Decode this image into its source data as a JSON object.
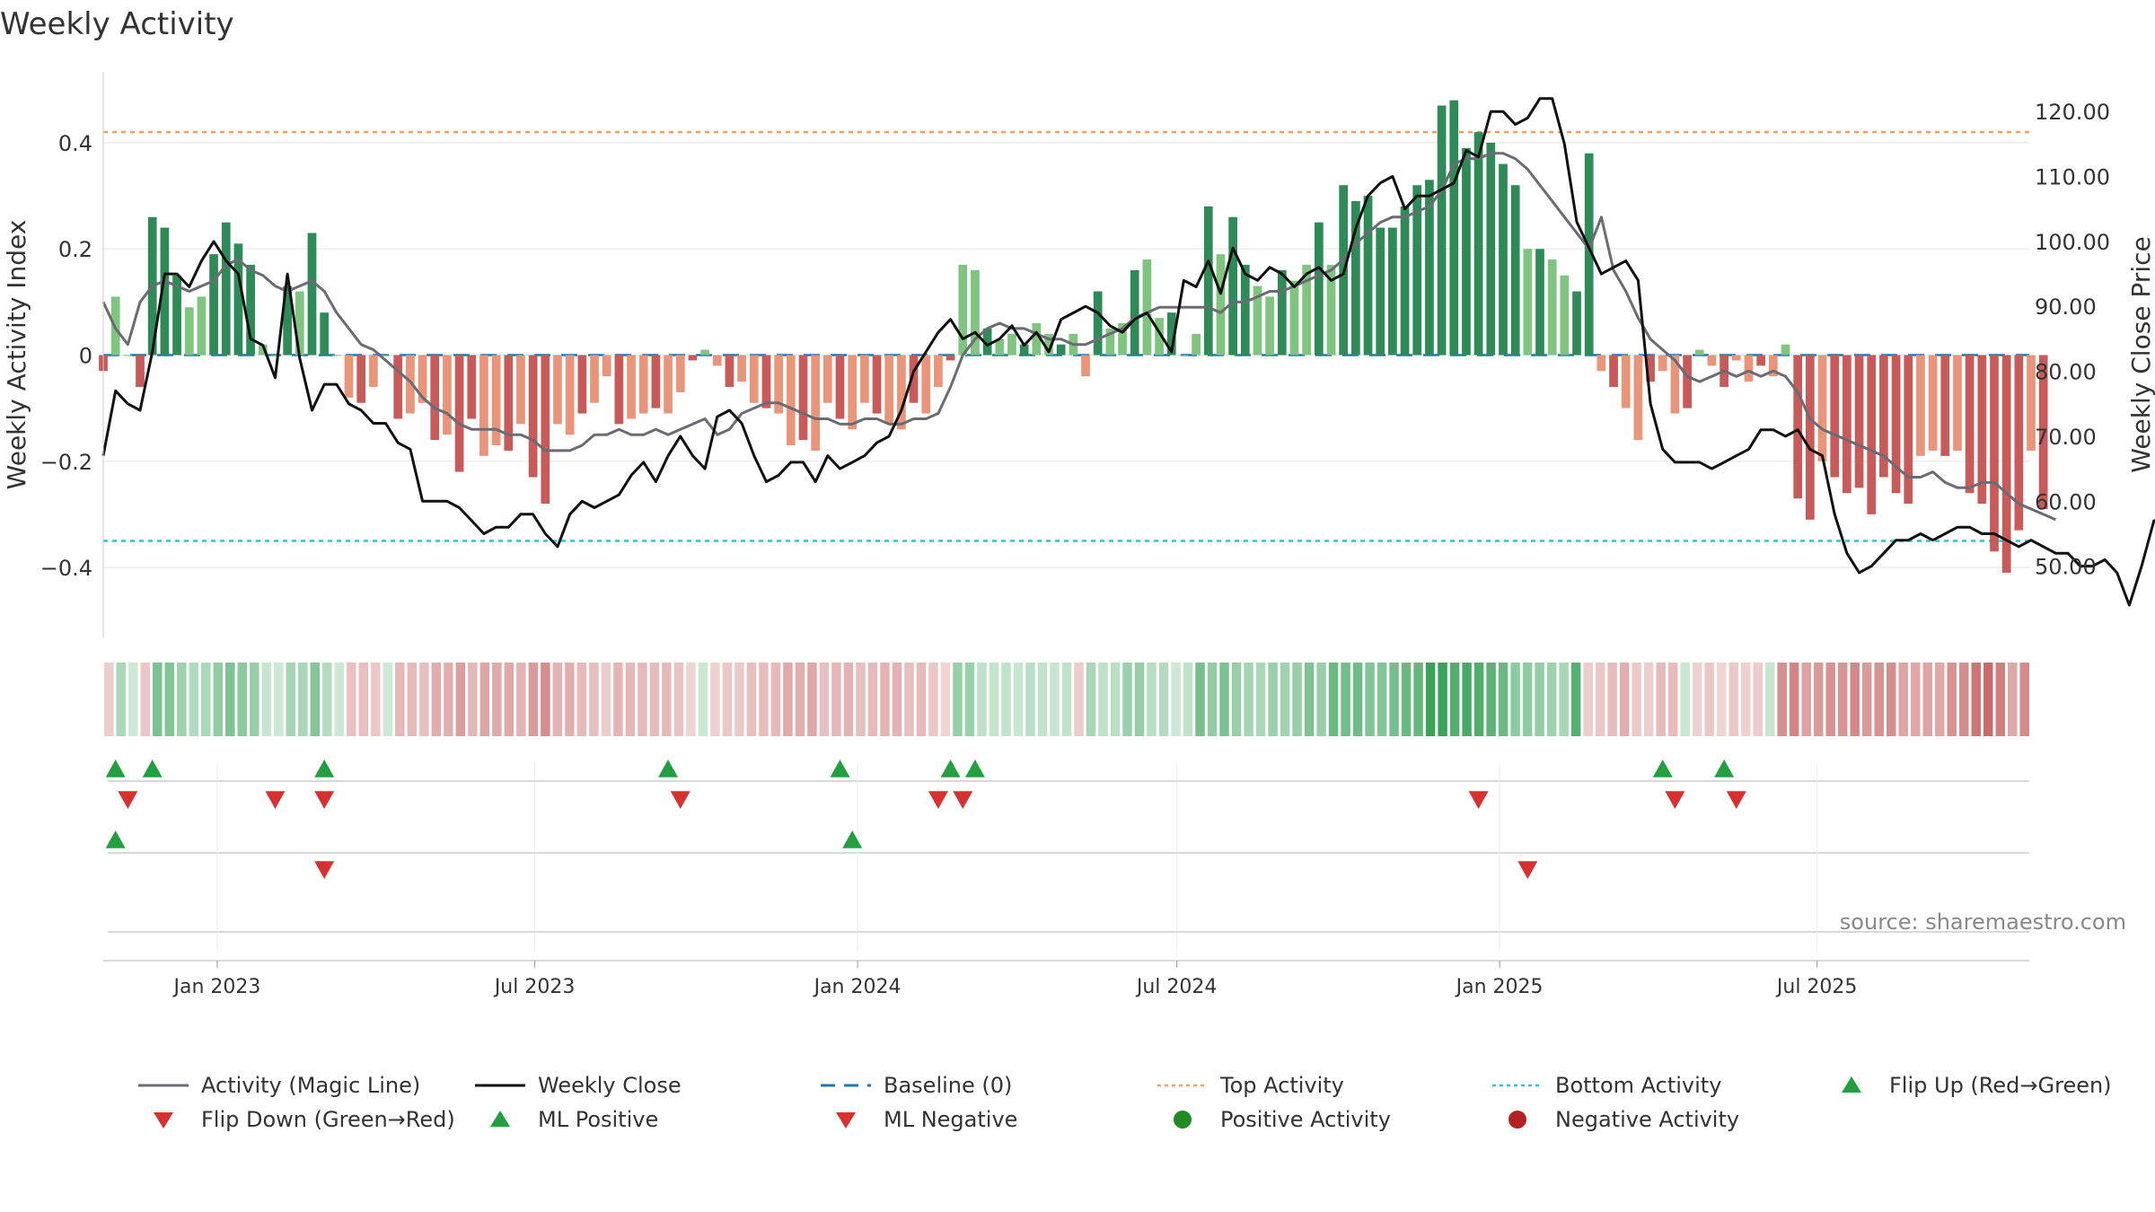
{
  "title": "Weekly Activity",
  "source": "source: sharemaestro.com",
  "colors": {
    "strongGreen": "#2e8b57",
    "lightGreen": "#7fc47f",
    "strongRed": "#c85a5a",
    "lightRed": "#e8957a",
    "magic": "#6b6b73",
    "close": "#111111",
    "baseline": "#1f77b4",
    "top": "#f0a060",
    "bottom": "#29c5d6",
    "flipUp": "#22a040",
    "flipDown": "#d63030"
  },
  "chart_data": {
    "type": "bar+line",
    "title": "Weekly Activity",
    "ylabel_left": "Weekly Activity Index",
    "ylabel_right": "Weekly Close Price",
    "ylim_left": [
      -0.52,
      0.52
    ],
    "ylim_right": [
      40,
      125
    ],
    "yticks_left": [
      "−0.4",
      "−0.2",
      "0",
      "0.2",
      "0.4"
    ],
    "yticks_right": [
      "50.00",
      "60.00",
      "70.00",
      "80.00",
      "90.00",
      "100.00",
      "110.00",
      "120.00"
    ],
    "x_start": "2022-10-28",
    "x_ticks": [
      {
        "date": "2023-01-01",
        "label": "Jan 2023"
      },
      {
        "date": "2023-07-01",
        "label": "Jul 2023"
      },
      {
        "date": "2024-01-01",
        "label": "Jan 2024"
      },
      {
        "date": "2024-07-01",
        "label": "Jul 2024"
      },
      {
        "date": "2025-01-01",
        "label": "Jan 2025"
      },
      {
        "date": "2025-07-01",
        "label": "Jul 2025"
      }
    ],
    "x_end": "2025-10-31",
    "top_activity": 0.42,
    "bottom_activity": -0.35,
    "activity": [
      -0.03,
      0.11,
      0.0,
      -0.06,
      0.26,
      0.24,
      0.15,
      0.09,
      0.11,
      0.19,
      0.25,
      0.21,
      0.17,
      0.02,
      0.0,
      0.13,
      0.12,
      0.23,
      0.08,
      0.0,
      -0.08,
      -0.09,
      -0.06,
      0.0,
      -0.12,
      -0.11,
      -0.09,
      -0.16,
      -0.15,
      -0.22,
      -0.12,
      -0.19,
      -0.17,
      -0.18,
      -0.13,
      -0.23,
      -0.28,
      -0.13,
      -0.15,
      -0.11,
      -0.09,
      -0.04,
      -0.13,
      -0.12,
      -0.11,
      -0.1,
      -0.11,
      -0.07,
      -0.01,
      0.01,
      -0.02,
      -0.06,
      -0.05,
      -0.09,
      -0.1,
      -0.11,
      -0.17,
      -0.16,
      -0.18,
      -0.09,
      -0.12,
      -0.14,
      -0.09,
      -0.11,
      -0.13,
      -0.14,
      -0.09,
      -0.11,
      -0.06,
      -0.01,
      0.17,
      0.16,
      0.05,
      0.03,
      0.04,
      0.02,
      0.06,
      0.04,
      0.02,
      0.04,
      -0.04,
      0.12,
      0.05,
      0.06,
      0.16,
      0.18,
      0.07,
      0.08,
      0.0,
      0.04,
      0.28,
      0.19,
      0.26,
      0.17,
      0.13,
      0.11,
      0.16,
      0.14,
      0.17,
      0.25,
      0.17,
      0.32,
      0.29,
      0.3,
      0.24,
      0.24,
      0.28,
      0.32,
      0.33,
      0.47,
      0.48,
      0.39,
      0.42,
      0.4,
      0.36,
      0.32,
      0.2,
      0.2,
      0.18,
      0.15,
      0.12,
      0.38,
      -0.03,
      -0.06,
      -0.1,
      -0.16,
      -0.05,
      -0.03,
      -0.11,
      -0.1,
      0.01,
      -0.02,
      -0.06,
      -0.01,
      -0.05,
      -0.02,
      -0.04,
      0.02,
      -0.27,
      -0.31,
      -0.2,
      -0.23,
      -0.26,
      -0.25,
      -0.3,
      -0.23,
      -0.26,
      -0.28,
      -0.19,
      -0.18,
      -0.19,
      -0.18,
      -0.26,
      -0.28,
      -0.37,
      -0.41,
      -0.33,
      -0.18,
      -0.29
    ],
    "magic": [
      0.1,
      0.05,
      0.02,
      0.1,
      0.13,
      0.14,
      0.13,
      0.12,
      0.13,
      0.14,
      0.17,
      0.18,
      0.16,
      0.15,
      0.13,
      0.12,
      0.13,
      0.14,
      0.12,
      0.08,
      0.05,
      0.02,
      0.01,
      -0.01,
      -0.03,
      -0.05,
      -0.08,
      -0.1,
      -0.11,
      -0.13,
      -0.14,
      -0.14,
      -0.14,
      -0.15,
      -0.15,
      -0.16,
      -0.18,
      -0.18,
      -0.18,
      -0.17,
      -0.15,
      -0.15,
      -0.14,
      -0.15,
      -0.15,
      -0.14,
      -0.15,
      -0.14,
      -0.13,
      -0.12,
      -0.15,
      -0.14,
      -0.11,
      -0.1,
      -0.09,
      -0.09,
      -0.1,
      -0.11,
      -0.12,
      -0.12,
      -0.13,
      -0.13,
      -0.12,
      -0.12,
      -0.13,
      -0.13,
      -0.12,
      -0.12,
      -0.11,
      -0.06,
      0.0,
      0.03,
      0.05,
      0.06,
      0.05,
      0.05,
      0.04,
      0.03,
      0.03,
      0.02,
      0.02,
      0.03,
      0.04,
      0.05,
      0.07,
      0.08,
      0.09,
      0.09,
      0.09,
      0.09,
      0.09,
      0.08,
      0.1,
      0.1,
      0.11,
      0.12,
      0.12,
      0.13,
      0.14,
      0.15,
      0.16,
      0.18,
      0.21,
      0.23,
      0.25,
      0.26,
      0.26,
      0.27,
      0.28,
      0.31,
      0.36,
      0.37,
      0.37,
      0.38,
      0.38,
      0.37,
      0.35,
      0.32,
      0.29,
      0.26,
      0.23,
      0.2,
      0.26,
      0.16,
      0.12,
      0.07,
      0.03,
      0.01,
      -0.01,
      -0.04,
      -0.05,
      -0.04,
      -0.03,
      -0.04,
      -0.03,
      -0.04,
      -0.03,
      -0.04,
      -0.07,
      -0.12,
      -0.14,
      -0.15,
      -0.16,
      -0.17,
      -0.18,
      -0.19,
      -0.21,
      -0.23,
      -0.23,
      -0.22,
      -0.24,
      -0.25,
      -0.25,
      -0.24,
      -0.24,
      -0.26,
      -0.28,
      -0.29,
      -0.3,
      -0.31
    ],
    "close": [
      67,
      77,
      75,
      74,
      83,
      95,
      95,
      93,
      97,
      100,
      97,
      95,
      85,
      84,
      79,
      95,
      82,
      74,
      78,
      78,
      75,
      74,
      72,
      72,
      69,
      68,
      60,
      60,
      60,
      59,
      57,
      55,
      56,
      56,
      58,
      58,
      55,
      53,
      58,
      60,
      59,
      60,
      61,
      64,
      66,
      63,
      67,
      70,
      67,
      65,
      73,
      74,
      72,
      67,
      63,
      64,
      66,
      66,
      63,
      67,
      65,
      66,
      67,
      69,
      70,
      74,
      80,
      83,
      86,
      88,
      85,
      86,
      84,
      85,
      87,
      84,
      86,
      83,
      88,
      89,
      90,
      89,
      87,
      86,
      88,
      89,
      86,
      83,
      94,
      93,
      97,
      92,
      99,
      95,
      94,
      96,
      95,
      93,
      95,
      96,
      94,
      95,
      102,
      107,
      109,
      110,
      105,
      107,
      107,
      108,
      109,
      114,
      113,
      120,
      120,
      118,
      119,
      122,
      122,
      115,
      103,
      99,
      95,
      96,
      97,
      94,
      75,
      68,
      66,
      66,
      66,
      65,
      66,
      67,
      68,
      71,
      71,
      70,
      71,
      68,
      67,
      58,
      52,
      49,
      50,
      52,
      54,
      54,
      55,
      54,
      55,
      56,
      56,
      55,
      55,
      54,
      53,
      54,
      53,
      52,
      52,
      50,
      50,
      51,
      49,
      44,
      50,
      57,
      57,
      57,
      57,
      57,
      57
    ]
  },
  "flips": {
    "up": [
      "2022-11-04",
      "2022-11-25",
      "2023-03-03",
      "2023-09-15",
      "2023-12-22",
      "2024-02-23",
      "2024-03-08",
      "2025-04-04",
      "2025-05-09"
    ],
    "down": [
      "2022-11-11",
      "2023-02-03",
      "2023-03-03",
      "2023-09-22",
      "2024-02-16",
      "2024-03-01",
      "2024-12-20",
      "2025-04-11",
      "2025-05-16"
    ],
    "ml_up": [
      "2022-11-04",
      "2023-12-29"
    ],
    "ml_down": [
      "2023-03-03",
      "2025-01-17"
    ]
  },
  "legend": [
    {
      "label": "Activity (Magic Line)",
      "kind": "line",
      "color": "#6b6b73"
    },
    {
      "label": "Weekly Close",
      "kind": "line",
      "color": "#111111"
    },
    {
      "label": "Baseline (0)",
      "kind": "dash",
      "color": "#1f77b4"
    },
    {
      "label": "Top Activity",
      "kind": "dot",
      "color": "#f0a060"
    },
    {
      "label": "Bottom Activity",
      "kind": "dot",
      "color": "#29c5d6"
    },
    {
      "label": "Flip Up (Red→Green)",
      "kind": "up",
      "color": "#22a040"
    },
    {
      "label": "Flip Down (Green→Red)",
      "kind": "down",
      "color": "#d63030"
    },
    {
      "label": "ML Positive",
      "kind": "up",
      "color": "#22a040"
    },
    {
      "label": "ML Negative",
      "kind": "down",
      "color": "#d63030"
    },
    {
      "label": "Positive Activity",
      "kind": "circle",
      "color": "#228b22"
    },
    {
      "label": "Negative Activity",
      "kind": "circle",
      "color": "#b22222"
    }
  ]
}
